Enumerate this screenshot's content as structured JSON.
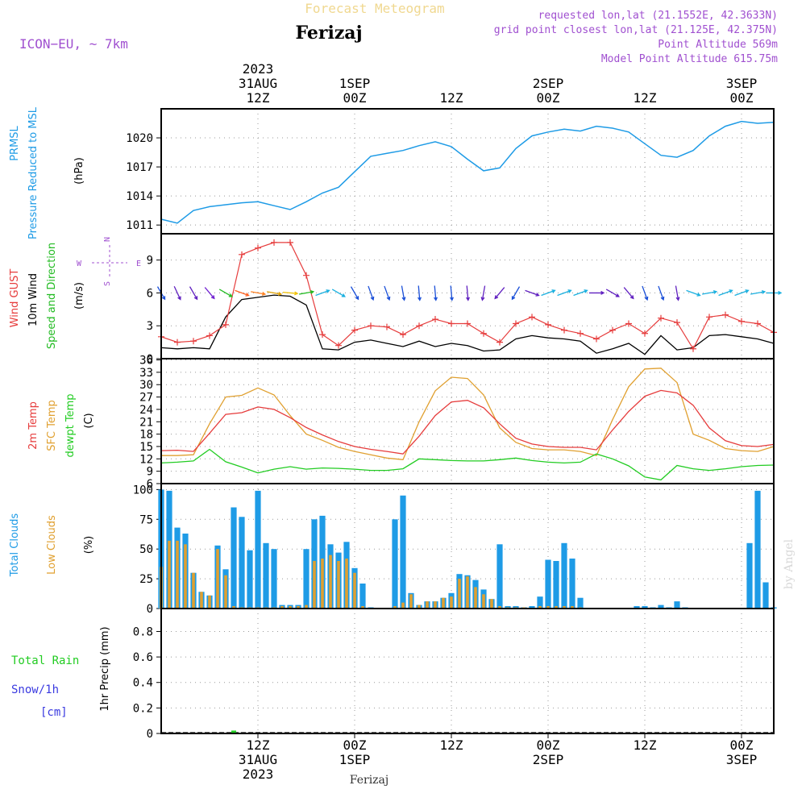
{
  "header": {
    "product": "Forecast Meteogram",
    "location": "Ferizaj",
    "model": "ICON−EU, ~ 7km",
    "requested": "requested lon,lat (21.1552E, 42.3633N)",
    "gridpoint": "grid point closest lon,lat (21.125E, 42.375N)",
    "point_alt": "Point Altitude 569m",
    "model_alt": "Model Point Altitude 615.75m",
    "footer_location": "Ferizaj",
    "watermark": "by Angel"
  },
  "colors": {
    "pressure": "#1e9be6",
    "gust": "#e63c3c",
    "wind": "#000000",
    "wind_dir": "#22bb22",
    "temp": "#e63c3c",
    "sfc_temp": "#e0a030",
    "dewpt": "#22cc22",
    "total_clouds": "#1e9be6",
    "low_clouds": "#e0a030",
    "rain": "#22cc22",
    "snow": "#3a3ae0",
    "meta": "#a050d0",
    "title_top": "#f0d890"
  },
  "time_axis": {
    "top": [
      {
        "h": 12,
        "l1": "2023",
        "l2": "31AUG",
        "l3": "12Z"
      },
      {
        "h": 24,
        "l1": "",
        "l2": "1SEP",
        "l3": "00Z"
      },
      {
        "h": 36,
        "l1": "",
        "l2": "",
        "l3": "12Z"
      },
      {
        "h": 48,
        "l1": "",
        "l2": "2SEP",
        "l3": "00Z"
      },
      {
        "h": 60,
        "l1": "",
        "l2": "",
        "l3": "12Z"
      },
      {
        "h": 72,
        "l1": "",
        "l2": "3SEP",
        "l3": "00Z"
      }
    ],
    "bottom": [
      {
        "h": 12,
        "l1": "12Z",
        "l2": "31AUG",
        "l3": "2023"
      },
      {
        "h": 24,
        "l1": "00Z",
        "l2": "1SEP",
        "l3": ""
      },
      {
        "h": 36,
        "l1": "12Z",
        "l2": "",
        "l3": ""
      },
      {
        "h": 48,
        "l1": "00Z",
        "l2": "2SEP",
        "l3": ""
      },
      {
        "h": 60,
        "l1": "12Z",
        "l2": "",
        "l3": ""
      },
      {
        "h": 72,
        "l1": "00Z",
        "l2": "3SEP",
        "l3": ""
      }
    ]
  },
  "panels": {
    "pressure": {
      "labels": [
        "PRMSL",
        "Pressure Reduced to MSL"
      ],
      "unit": "(hPa)",
      "ticks": [
        "1011",
        "1014",
        "1017",
        "1020"
      ]
    },
    "wind": {
      "labels": [
        "Wind GUST",
        "10m Wind",
        "Speed and Direction"
      ],
      "unit": "(m/s)",
      "ticks": [
        "0",
        "3",
        "6",
        "9"
      ],
      "compass": {
        "n": "N",
        "s": "S",
        "w": "W",
        "e": "E"
      }
    },
    "temp": {
      "labels": [
        "2m Temp",
        "SFC Temp",
        "dewpt Temp"
      ],
      "unit": "(C)",
      "ticks": [
        "6",
        "9",
        "12",
        "15",
        "18",
        "21",
        "24",
        "27",
        "30",
        "33",
        "36"
      ]
    },
    "clouds": {
      "labels": [
        "Total Clouds",
        "Low Clouds"
      ],
      "unit": "(%)",
      "ticks": [
        "0",
        "25",
        "50",
        "75",
        "100"
      ]
    },
    "precip": {
      "labels": [
        "Total Rain",
        "Snow/1h",
        "[cm]"
      ],
      "unit": "1hr Precip (mm)",
      "ticks": [
        "0",
        "0.2",
        "0.4",
        "0.6",
        "0.8"
      ]
    }
  },
  "chart_data": [
    {
      "type": "line",
      "title": "PRMSL Pressure Reduced to MSL",
      "ylabel": "hPa",
      "ylim": [
        1010.1,
        1023
      ],
      "x_unit": "hours from 31AUG 00Z",
      "series": [
        {
          "name": "PRMSL",
          "x": [
            0,
            2,
            4,
            6,
            8,
            10,
            12,
            14,
            16,
            18,
            20,
            22,
            24,
            26,
            28,
            30,
            32,
            34,
            36,
            38,
            40,
            42,
            44,
            46,
            48,
            50,
            52,
            54,
            56,
            58,
            60,
            62,
            64,
            66,
            68,
            70,
            72,
            74,
            76
          ],
          "values": [
            1011.6,
            1011.2,
            1012.5,
            1012.9,
            1013.1,
            1013.3,
            1013.4,
            1013.0,
            1012.6,
            1013.4,
            1014.3,
            1014.9,
            1016.5,
            1018.1,
            1018.4,
            1018.7,
            1019.2,
            1019.6,
            1019.1,
            1017.8,
            1016.6,
            1016.9,
            1018.9,
            1020.2,
            1020.6,
            1020.9,
            1020.7,
            1021.2,
            1021.0,
            1020.6,
            1019.4,
            1018.2,
            1018.0,
            1018.7,
            1020.2,
            1021.2,
            1021.7,
            1021.5,
            1021.6
          ]
        }
      ]
    },
    {
      "type": "line",
      "title": "Wind GUST, 10m Wind Speed and Direction",
      "ylabel": "m/s",
      "ylim": [
        0,
        11.4
      ],
      "x_unit": "hours from 31AUG 00Z",
      "series": [
        {
          "name": "Wind GUST",
          "x": [
            0,
            2,
            4,
            6,
            8,
            10,
            12,
            14,
            16,
            18,
            20,
            22,
            24,
            26,
            28,
            30,
            32,
            34,
            36,
            38,
            40,
            42,
            44,
            46,
            48,
            50,
            52,
            54,
            56,
            58,
            60,
            62,
            64,
            66,
            68,
            70,
            72,
            74,
            76
          ],
          "values": [
            2.0,
            1.5,
            1.6,
            2.1,
            3.1,
            9.5,
            10.1,
            10.6,
            10.6,
            7.6,
            2.2,
            1.2,
            2.6,
            3.0,
            2.9,
            2.2,
            3.0,
            3.6,
            3.2,
            3.2,
            2.3,
            1.5,
            3.2,
            3.8,
            3.1,
            2.6,
            2.3,
            1.8,
            2.6,
            3.2,
            2.3,
            3.7,
            3.3,
            0.9,
            3.8,
            4.0,
            3.4,
            3.2,
            2.4
          ]
        },
        {
          "name": "10m Wind",
          "x": [
            0,
            2,
            4,
            6,
            8,
            10,
            12,
            14,
            16,
            18,
            20,
            22,
            24,
            26,
            28,
            30,
            32,
            34,
            36,
            38,
            40,
            42,
            44,
            46,
            48,
            50,
            52,
            54,
            56,
            58,
            60,
            62,
            64,
            66,
            68,
            70,
            72,
            74,
            76
          ],
          "values": [
            1.0,
            0.9,
            1.0,
            0.9,
            3.8,
            5.4,
            5.6,
            5.8,
            5.7,
            4.9,
            0.9,
            0.8,
            1.5,
            1.7,
            1.4,
            1.1,
            1.6,
            1.1,
            1.4,
            1.2,
            0.7,
            0.8,
            1.8,
            2.1,
            1.9,
            1.8,
            1.6,
            0.5,
            0.9,
            1.4,
            0.4,
            2.1,
            0.8,
            1.0,
            2.1,
            2.2,
            2.0,
            1.8,
            1.4
          ]
        }
      ]
    },
    {
      "type": "line",
      "title": "2m Temp, SFC Temp, dewpt Temp",
      "ylabel": "C",
      "ylim": [
        6,
        36.3
      ],
      "x_unit": "hours from 31AUG 00Z",
      "series": [
        {
          "name": "2m Temp",
          "x": [
            0,
            2,
            4,
            6,
            8,
            10,
            12,
            14,
            16,
            18,
            20,
            22,
            24,
            26,
            28,
            30,
            32,
            34,
            36,
            38,
            40,
            42,
            44,
            46,
            48,
            50,
            52,
            54,
            56,
            58,
            60,
            62,
            64,
            66,
            68,
            70,
            72,
            74,
            76
          ],
          "values": [
            14.0,
            14.1,
            13.8,
            18.2,
            22.8,
            23.2,
            24.6,
            24.0,
            22.0,
            19.6,
            17.8,
            16.2,
            15.0,
            14.3,
            13.8,
            13.2,
            17.5,
            22.5,
            25.8,
            26.2,
            24.4,
            20.5,
            17.0,
            15.6,
            15.0,
            14.8,
            14.8,
            14.2,
            19.0,
            23.5,
            27.2,
            28.6,
            28.0,
            25.0,
            19.5,
            16.4,
            15.2,
            15.0,
            15.5
          ]
        },
        {
          "name": "SFC Temp",
          "x": [
            0,
            2,
            4,
            6,
            8,
            10,
            12,
            14,
            16,
            18,
            20,
            22,
            24,
            26,
            28,
            30,
            32,
            34,
            36,
            38,
            40,
            42,
            44,
            46,
            48,
            50,
            52,
            54,
            56,
            58,
            60,
            62,
            64,
            66,
            68,
            70,
            72,
            74,
            76
          ],
          "values": [
            12.8,
            12.8,
            13.0,
            20.5,
            27.0,
            27.4,
            29.2,
            27.5,
            22.5,
            18.0,
            16.5,
            14.8,
            13.8,
            13.0,
            12.2,
            11.8,
            21.0,
            28.5,
            31.8,
            31.5,
            27.5,
            19.5,
            16.0,
            14.5,
            14.2,
            14.2,
            13.8,
            12.8,
            21.5,
            29.5,
            33.8,
            34.0,
            30.5,
            18.0,
            16.5,
            14.5,
            14.0,
            13.8,
            15.0
          ]
        },
        {
          "name": "dewpt Temp",
          "x": [
            0,
            2,
            4,
            6,
            8,
            10,
            12,
            14,
            16,
            18,
            20,
            22,
            24,
            26,
            28,
            30,
            32,
            34,
            36,
            38,
            40,
            42,
            44,
            46,
            48,
            50,
            52,
            54,
            56,
            58,
            60,
            62,
            64,
            66,
            68,
            70,
            72,
            74,
            76
          ],
          "values": [
            11.0,
            11.2,
            11.5,
            14.3,
            11.3,
            10.0,
            8.6,
            9.5,
            10.1,
            9.5,
            9.8,
            9.7,
            9.5,
            9.2,
            9.2,
            9.6,
            12.0,
            11.8,
            11.6,
            11.5,
            11.5,
            11.8,
            12.2,
            11.6,
            11.2,
            11.0,
            11.2,
            13.2,
            12.0,
            10.3,
            7.6,
            6.9,
            10.4,
            9.6,
            9.2,
            9.6,
            10.1,
            10.4,
            10.5
          ]
        }
      ]
    },
    {
      "type": "bar",
      "title": "Total Clouds, Low Clouds",
      "ylabel": "%",
      "ylim": [
        0,
        105
      ],
      "x_unit": "hours from 31AUG 00Z",
      "x": [
        0,
        1,
        2,
        3,
        4,
        5,
        6,
        7,
        8,
        9,
        10,
        11,
        12,
        13,
        14,
        15,
        16,
        17,
        18,
        19,
        20,
        21,
        22,
        23,
        24,
        25,
        26,
        27,
        28,
        29,
        30,
        31,
        32,
        33,
        34,
        35,
        36,
        37,
        38,
        39,
        40,
        41,
        42,
        43,
        44,
        45,
        46,
        47,
        48,
        49,
        50,
        51,
        52,
        53,
        54,
        55,
        56,
        57,
        58,
        59,
        60,
        61,
        62,
        63,
        64,
        65,
        66,
        67,
        68,
        69,
        70,
        71,
        72,
        73,
        74,
        75,
        76
      ],
      "series": [
        {
          "name": "Total Clouds",
          "values": [
            100,
            99,
            68,
            63,
            30,
            14,
            11,
            53,
            33,
            85,
            77,
            49,
            99,
            55,
            50,
            3,
            3,
            3,
            50,
            75,
            78,
            54,
            47,
            56,
            34,
            21,
            1,
            0,
            0,
            75,
            95,
            13,
            3,
            6,
            6,
            9,
            13,
            29,
            28,
            24,
            16,
            8,
            54,
            2,
            2,
            1,
            2,
            10,
            41,
            40,
            55,
            42,
            9,
            0,
            0,
            0,
            0,
            0,
            0,
            2,
            2,
            1,
            3,
            1,
            6,
            1,
            0,
            0,
            0,
            0,
            0,
            0,
            0,
            55,
            99,
            22,
            1
          ]
        },
        {
          "name": "Low Clouds",
          "values": [
            35,
            57,
            57,
            54,
            30,
            14,
            11,
            50,
            28,
            2,
            1,
            1,
            1,
            1,
            1,
            2,
            2,
            2,
            3,
            40,
            42,
            45,
            40,
            42,
            30,
            2,
            0,
            0,
            0,
            2,
            5,
            12,
            3,
            6,
            6,
            9,
            10,
            25,
            27,
            18,
            12,
            8,
            2,
            1,
            1,
            1,
            0,
            2,
            2,
            2,
            2,
            2,
            1,
            0,
            0,
            0,
            0,
            0,
            0,
            0,
            0,
            0,
            0,
            0,
            0,
            0,
            0,
            0,
            0,
            0,
            0,
            0,
            0,
            0,
            0,
            0,
            0
          ]
        }
      ]
    },
    {
      "type": "bar",
      "title": "1hr Precip",
      "ylabel": "mm",
      "ylim": [
        0,
        0.98
      ],
      "x_unit": "hours from 31AUG 00Z",
      "series": [
        {
          "name": "Total Rain",
          "x": [
            9
          ],
          "values": [
            0.01
          ]
        },
        {
          "name": "Snow/1h",
          "x": [],
          "values": []
        }
      ]
    }
  ],
  "wind_direction": {
    "x": [
      0,
      2,
      4,
      6,
      8,
      10,
      12,
      14,
      16,
      18,
      20,
      22,
      24,
      26,
      28,
      30,
      32,
      34,
      36,
      38,
      40,
      42,
      44,
      46,
      48,
      50,
      52,
      54,
      56,
      58,
      60,
      62,
      64,
      66,
      68,
      70,
      72,
      74,
      76
    ],
    "from_deg": [
      330,
      335,
      330,
      320,
      300,
      290,
      280,
      280,
      275,
      260,
      250,
      300,
      330,
      340,
      340,
      350,
      355,
      355,
      355,
      355,
      10,
      40,
      30,
      290,
      250,
      250,
      250,
      270,
      300,
      320,
      340,
      340,
      350,
      290,
      260,
      250,
      250,
      260,
      270
    ],
    "colors": [
      "#1a4fd8",
      "#6020c0",
      "#6020c0",
      "#7020d0",
      "#22bb22",
      "#ff6020",
      "#ff8020",
      "#e0a000",
      "#f0c000",
      "#22bb22",
      "#1ab0e0",
      "#1ab0e0",
      "#1a4fd8",
      "#1a4fd8",
      "#1a4fd8",
      "#1a4fd8",
      "#1a4fd8",
      "#1a4fd8",
      "#1a4fd8",
      "#6020c0",
      "#6020c0",
      "#6020c0",
      "#1a4fd8",
      "#6020c0",
      "#1ab0e0",
      "#1ab0e0",
      "#1ab0e0",
      "#6020c0",
      "#6020c0",
      "#6020c0",
      "#1a4fd8",
      "#1a4fd8",
      "#6020c0",
      "#1ab0e0",
      "#1ab0e0",
      "#1ab0e0",
      "#1ab0e0",
      "#1ab0e0",
      "#1ab0e0"
    ]
  }
}
